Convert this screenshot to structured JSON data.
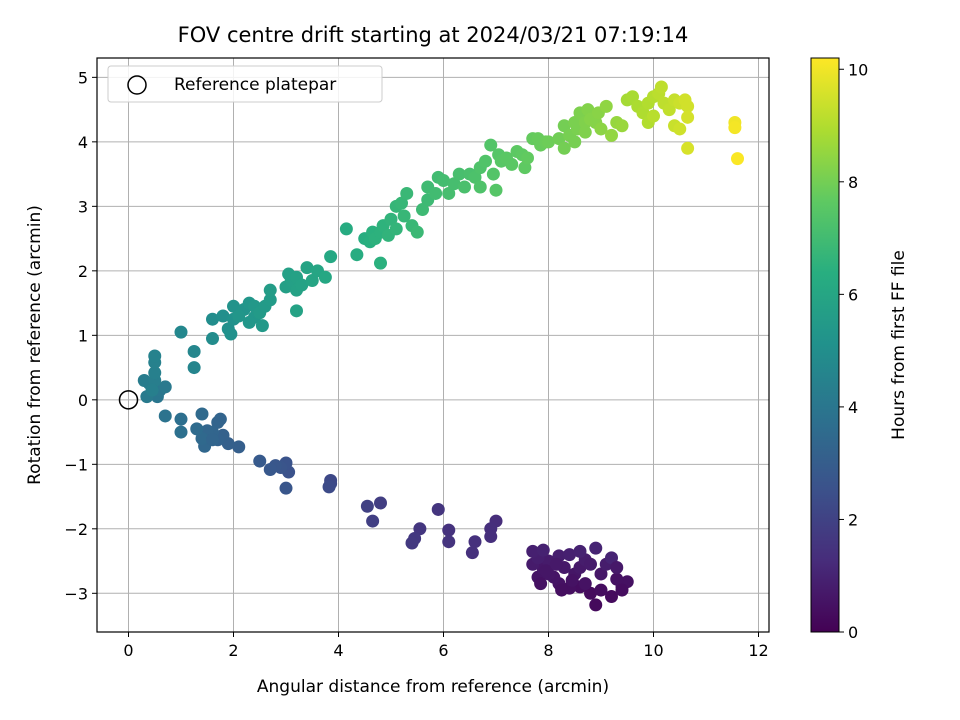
{
  "chart_data": {
    "type": "scatter",
    "title": "FOV centre drift starting at 2024/03/21 07:19:14",
    "xlabel": "Angular distance from reference (arcmin)",
    "ylabel": "Rotation from reference (arcmin)",
    "xlim": [
      -0.6,
      12.2
    ],
    "ylim": [
      -3.6,
      5.3
    ],
    "xticks": [
      "0",
      "2",
      "4",
      "6",
      "8",
      "10",
      "12"
    ],
    "yticks": [
      "−3",
      "−2",
      "−1",
      "0",
      "1",
      "2",
      "3",
      "4",
      "5"
    ],
    "grid": true,
    "legend": {
      "position": "top-left",
      "entries": [
        "Reference platepar"
      ]
    },
    "colorbar": {
      "label": "Hours from first FF file",
      "range": [
        0,
        10.2
      ],
      "ticks": [
        "0",
        "2",
        "4",
        "6",
        "8",
        "10"
      ],
      "colormap": "viridis"
    },
    "reference_point": {
      "x": 0,
      "y": 0,
      "label": "Reference platepar"
    },
    "points": [
      {
        "x": 8.9,
        "y": -3.18,
        "h": 0.25
      },
      {
        "x": 9.2,
        "y": -3.05,
        "h": 0.3
      },
      {
        "x": 8.8,
        "y": -3.0,
        "h": 0.3
      },
      {
        "x": 9.0,
        "y": -2.95,
        "h": 0.35
      },
      {
        "x": 8.6,
        "y": -2.9,
        "h": 0.35
      },
      {
        "x": 8.4,
        "y": -2.92,
        "h": 0.4
      },
      {
        "x": 9.4,
        "y": -2.9,
        "h": 0.4
      },
      {
        "x": 9.5,
        "y": -2.82,
        "h": 0.45
      },
      {
        "x": 9.3,
        "y": -2.78,
        "h": 0.45
      },
      {
        "x": 8.7,
        "y": -2.85,
        "h": 0.5
      },
      {
        "x": 8.2,
        "y": -2.85,
        "h": 0.5
      },
      {
        "x": 8.1,
        "y": -2.75,
        "h": 0.55
      },
      {
        "x": 7.8,
        "y": -2.75,
        "h": 0.55
      },
      {
        "x": 8.0,
        "y": -2.7,
        "h": 0.6
      },
      {
        "x": 8.5,
        "y": -2.7,
        "h": 0.6
      },
      {
        "x": 9.0,
        "y": -2.7,
        "h": 0.65
      },
      {
        "x": 7.9,
        "y": -2.62,
        "h": 0.65
      },
      {
        "x": 8.3,
        "y": -2.6,
        "h": 0.7
      },
      {
        "x": 8.6,
        "y": -2.6,
        "h": 0.7
      },
      {
        "x": 7.7,
        "y": -2.55,
        "h": 0.75
      },
      {
        "x": 8.0,
        "y": -2.5,
        "h": 0.75
      },
      {
        "x": 9.1,
        "y": -2.55,
        "h": 0.8
      },
      {
        "x": 8.7,
        "y": -2.48,
        "h": 0.8
      },
      {
        "x": 7.8,
        "y": -2.45,
        "h": 0.85
      },
      {
        "x": 8.2,
        "y": -2.42,
        "h": 0.85
      },
      {
        "x": 8.4,
        "y": -2.4,
        "h": 0.9
      },
      {
        "x": 7.7,
        "y": -2.35,
        "h": 0.9
      },
      {
        "x": 7.9,
        "y": -2.33,
        "h": 0.95
      },
      {
        "x": 8.6,
        "y": -2.35,
        "h": 0.95
      },
      {
        "x": 8.9,
        "y": -2.3,
        "h": 1.0
      },
      {
        "x": 9.2,
        "y": -2.45,
        "h": 1.0
      },
      {
        "x": 7.95,
        "y": -2.65,
        "h": 0.6
      },
      {
        "x": 8.15,
        "y": -2.55,
        "h": 0.7
      },
      {
        "x": 8.45,
        "y": -2.8,
        "h": 0.5
      },
      {
        "x": 8.8,
        "y": -2.55,
        "h": 0.75
      },
      {
        "x": 9.3,
        "y": -2.6,
        "h": 0.7
      },
      {
        "x": 7.85,
        "y": -2.85,
        "h": 0.45
      },
      {
        "x": 8.25,
        "y": -2.95,
        "h": 0.4
      },
      {
        "x": 9.4,
        "y": -2.95,
        "h": 0.35
      },
      {
        "x": 7.0,
        "y": -1.88,
        "h": 1.3
      },
      {
        "x": 6.9,
        "y": -2.0,
        "h": 1.35
      },
      {
        "x": 6.9,
        "y": -2.12,
        "h": 1.35
      },
      {
        "x": 6.55,
        "y": -2.37,
        "h": 1.4
      },
      {
        "x": 6.6,
        "y": -2.2,
        "h": 1.4
      },
      {
        "x": 6.1,
        "y": -2.02,
        "h": 1.45
      },
      {
        "x": 6.1,
        "y": -2.2,
        "h": 1.5
      },
      {
        "x": 5.9,
        "y": -1.7,
        "h": 1.55
      },
      {
        "x": 5.55,
        "y": -2.0,
        "h": 1.6
      },
      {
        "x": 5.45,
        "y": -2.15,
        "h": 1.65
      },
      {
        "x": 5.4,
        "y": -2.22,
        "h": 1.7
      },
      {
        "x": 4.8,
        "y": -1.6,
        "h": 1.85
      },
      {
        "x": 4.65,
        "y": -1.88,
        "h": 1.9
      },
      {
        "x": 4.55,
        "y": -1.65,
        "h": 1.95
      },
      {
        "x": 3.85,
        "y": -1.25,
        "h": 2.2
      },
      {
        "x": 3.85,
        "y": -1.3,
        "h": 2.25
      },
      {
        "x": 3.82,
        "y": -1.35,
        "h": 2.3
      },
      {
        "x": 3.05,
        "y": -1.12,
        "h": 2.55
      },
      {
        "x": 3.0,
        "y": -0.98,
        "h": 2.6
      },
      {
        "x": 2.9,
        "y": -1.05,
        "h": 2.65
      },
      {
        "x": 3.0,
        "y": -1.37,
        "h": 2.7
      },
      {
        "x": 2.8,
        "y": -1.02,
        "h": 2.75
      },
      {
        "x": 2.7,
        "y": -1.08,
        "h": 2.8
      },
      {
        "x": 2.5,
        "y": -0.95,
        "h": 2.85
      },
      {
        "x": 2.1,
        "y": -0.73,
        "h": 3.05
      },
      {
        "x": 1.9,
        "y": -0.68,
        "h": 3.1
      },
      {
        "x": 1.8,
        "y": -0.55,
        "h": 3.15
      },
      {
        "x": 1.7,
        "y": -0.62,
        "h": 3.2
      },
      {
        "x": 1.7,
        "y": -0.35,
        "h": 3.25
      },
      {
        "x": 1.6,
        "y": -0.5,
        "h": 3.3
      },
      {
        "x": 1.5,
        "y": -0.48,
        "h": 3.35
      },
      {
        "x": 1.45,
        "y": -0.72,
        "h": 3.4
      },
      {
        "x": 1.4,
        "y": -0.6,
        "h": 3.45
      },
      {
        "x": 1.4,
        "y": -0.22,
        "h": 3.5
      },
      {
        "x": 1.3,
        "y": -0.45,
        "h": 3.55
      },
      {
        "x": 1.6,
        "y": -0.62,
        "h": 3.3
      },
      {
        "x": 1.75,
        "y": -0.3,
        "h": 3.25
      },
      {
        "x": 1.0,
        "y": -0.3,
        "h": 3.7
      },
      {
        "x": 1.0,
        "y": -0.5,
        "h": 3.75
      },
      {
        "x": 0.7,
        "y": -0.25,
        "h": 3.85
      },
      {
        "x": 0.55,
        "y": 0.05,
        "h": 4.0
      },
      {
        "x": 0.6,
        "y": 0.15,
        "h": 4.05
      },
      {
        "x": 0.7,
        "y": 0.2,
        "h": 4.1
      },
      {
        "x": 0.35,
        "y": 0.05,
        "h": 4.15
      },
      {
        "x": 0.4,
        "y": 0.25,
        "h": 4.2
      },
      {
        "x": 0.3,
        "y": 0.3,
        "h": 4.25
      },
      {
        "x": 0.5,
        "y": 0.3,
        "h": 4.3
      },
      {
        "x": 0.45,
        "y": 0.15,
        "h": 4.35
      },
      {
        "x": 0.5,
        "y": 0.42,
        "h": 4.4
      },
      {
        "x": 0.5,
        "y": 0.58,
        "h": 4.45
      },
      {
        "x": 0.5,
        "y": 0.68,
        "h": 4.5
      },
      {
        "x": 1.25,
        "y": 0.5,
        "h": 4.6
      },
      {
        "x": 1.25,
        "y": 0.75,
        "h": 4.65
      },
      {
        "x": 1.0,
        "y": 1.05,
        "h": 4.7
      },
      {
        "x": 1.6,
        "y": 0.95,
        "h": 4.9
      },
      {
        "x": 1.6,
        "y": 1.25,
        "h": 4.95
      },
      {
        "x": 1.8,
        "y": 1.3,
        "h": 5.0
      },
      {
        "x": 1.9,
        "y": 1.1,
        "h": 5.05
      },
      {
        "x": 1.95,
        "y": 1.02,
        "h": 5.1
      },
      {
        "x": 2.0,
        "y": 1.25,
        "h": 5.15
      },
      {
        "x": 2.0,
        "y": 1.45,
        "h": 5.2
      },
      {
        "x": 2.2,
        "y": 1.4,
        "h": 5.25
      },
      {
        "x": 2.3,
        "y": 1.5,
        "h": 5.3
      },
      {
        "x": 2.1,
        "y": 1.3,
        "h": 5.3
      },
      {
        "x": 2.4,
        "y": 1.28,
        "h": 5.35
      },
      {
        "x": 2.4,
        "y": 1.45,
        "h": 5.4
      },
      {
        "x": 2.55,
        "y": 1.15,
        "h": 5.45
      },
      {
        "x": 2.5,
        "y": 1.35,
        "h": 5.5
      },
      {
        "x": 2.6,
        "y": 1.45,
        "h": 5.5
      },
      {
        "x": 2.7,
        "y": 1.55,
        "h": 5.55
      },
      {
        "x": 2.7,
        "y": 1.7,
        "h": 5.6
      },
      {
        "x": 2.3,
        "y": 1.2,
        "h": 5.35
      },
      {
        "x": 3.0,
        "y": 1.75,
        "h": 5.7
      },
      {
        "x": 3.1,
        "y": 1.85,
        "h": 5.75
      },
      {
        "x": 3.05,
        "y": 1.95,
        "h": 5.75
      },
      {
        "x": 3.2,
        "y": 1.9,
        "h": 5.8
      },
      {
        "x": 3.2,
        "y": 1.7,
        "h": 5.8
      },
      {
        "x": 3.2,
        "y": 1.38,
        "h": 5.85
      },
      {
        "x": 3.3,
        "y": 1.78,
        "h": 5.85
      },
      {
        "x": 3.4,
        "y": 2.05,
        "h": 5.9
      },
      {
        "x": 3.5,
        "y": 1.85,
        "h": 5.95
      },
      {
        "x": 3.6,
        "y": 2.0,
        "h": 6.0
      },
      {
        "x": 3.75,
        "y": 1.9,
        "h": 6.05
      },
      {
        "x": 3.85,
        "y": 2.22,
        "h": 6.1
      },
      {
        "x": 4.15,
        "y": 2.65,
        "h": 6.25
      },
      {
        "x": 4.35,
        "y": 2.25,
        "h": 6.3
      },
      {
        "x": 4.5,
        "y": 2.5,
        "h": 6.35
      },
      {
        "x": 4.6,
        "y": 2.45,
        "h": 6.4
      },
      {
        "x": 4.65,
        "y": 2.6,
        "h": 6.45
      },
      {
        "x": 4.7,
        "y": 2.5,
        "h": 6.5
      },
      {
        "x": 4.8,
        "y": 2.6,
        "h": 6.5
      },
      {
        "x": 4.85,
        "y": 2.7,
        "h": 6.55
      },
      {
        "x": 4.95,
        "y": 2.55,
        "h": 6.6
      },
      {
        "x": 5.0,
        "y": 2.8,
        "h": 6.6
      },
      {
        "x": 5.1,
        "y": 2.65,
        "h": 6.65
      },
      {
        "x": 4.8,
        "y": 2.12,
        "h": 6.45
      },
      {
        "x": 5.1,
        "y": 3.0,
        "h": 6.7
      },
      {
        "x": 5.2,
        "y": 3.05,
        "h": 6.75
      },
      {
        "x": 5.25,
        "y": 2.85,
        "h": 6.75
      },
      {
        "x": 5.3,
        "y": 3.2,
        "h": 6.8
      },
      {
        "x": 5.4,
        "y": 2.7,
        "h": 6.8
      },
      {
        "x": 5.5,
        "y": 2.6,
        "h": 6.85
      },
      {
        "x": 5.6,
        "y": 2.95,
        "h": 6.9
      },
      {
        "x": 5.7,
        "y": 3.1,
        "h": 6.9
      },
      {
        "x": 5.7,
        "y": 3.3,
        "h": 6.95
      },
      {
        "x": 5.85,
        "y": 3.2,
        "h": 7.0
      },
      {
        "x": 5.9,
        "y": 3.45,
        "h": 7.0
      },
      {
        "x": 6.0,
        "y": 3.4,
        "h": 7.05
      },
      {
        "x": 6.1,
        "y": 3.2,
        "h": 7.1
      },
      {
        "x": 6.2,
        "y": 3.35,
        "h": 7.1
      },
      {
        "x": 6.3,
        "y": 3.5,
        "h": 7.15
      },
      {
        "x": 6.4,
        "y": 3.3,
        "h": 7.2
      },
      {
        "x": 6.5,
        "y": 3.5,
        "h": 7.2
      },
      {
        "x": 6.6,
        "y": 3.45,
        "h": 7.25
      },
      {
        "x": 6.7,
        "y": 3.6,
        "h": 7.3
      },
      {
        "x": 6.7,
        "y": 3.3,
        "h": 7.3
      },
      {
        "x": 6.8,
        "y": 3.7,
        "h": 7.35
      },
      {
        "x": 6.9,
        "y": 3.95,
        "h": 7.4
      },
      {
        "x": 6.95,
        "y": 3.5,
        "h": 7.4
      },
      {
        "x": 7.0,
        "y": 3.25,
        "h": 7.45
      },
      {
        "x": 7.05,
        "y": 3.8,
        "h": 7.45
      },
      {
        "x": 7.1,
        "y": 3.7,
        "h": 7.5
      },
      {
        "x": 7.2,
        "y": 3.75,
        "h": 7.55
      },
      {
        "x": 7.3,
        "y": 3.65,
        "h": 7.55
      },
      {
        "x": 7.4,
        "y": 3.85,
        "h": 7.6
      },
      {
        "x": 7.5,
        "y": 3.8,
        "h": 7.65
      },
      {
        "x": 7.55,
        "y": 3.6,
        "h": 7.65
      },
      {
        "x": 7.6,
        "y": 3.75,
        "h": 7.7
      },
      {
        "x": 7.7,
        "y": 4.05,
        "h": 7.75
      },
      {
        "x": 7.8,
        "y": 4.05,
        "h": 7.8
      },
      {
        "x": 7.85,
        "y": 3.95,
        "h": 7.8
      },
      {
        "x": 7.95,
        "y": 4.0,
        "h": 7.85
      },
      {
        "x": 8.0,
        "y": 4.0,
        "h": 7.9
      },
      {
        "x": 8.2,
        "y": 4.05,
        "h": 7.95
      },
      {
        "x": 8.3,
        "y": 3.9,
        "h": 8.0
      },
      {
        "x": 8.3,
        "y": 4.25,
        "h": 8.0
      },
      {
        "x": 8.4,
        "y": 4.1,
        "h": 8.05
      },
      {
        "x": 8.5,
        "y": 4.0,
        "h": 8.05
      },
      {
        "x": 8.5,
        "y": 4.3,
        "h": 8.1
      },
      {
        "x": 8.55,
        "y": 4.2,
        "h": 8.1
      },
      {
        "x": 8.6,
        "y": 4.45,
        "h": 8.15
      },
      {
        "x": 8.7,
        "y": 4.3,
        "h": 8.2
      },
      {
        "x": 8.7,
        "y": 4.15,
        "h": 8.2
      },
      {
        "x": 8.75,
        "y": 4.5,
        "h": 8.25
      },
      {
        "x": 8.8,
        "y": 4.35,
        "h": 8.3
      },
      {
        "x": 8.9,
        "y": 4.3,
        "h": 8.3
      },
      {
        "x": 8.95,
        "y": 4.45,
        "h": 8.35
      },
      {
        "x": 9.0,
        "y": 4.2,
        "h": 8.4
      },
      {
        "x": 9.1,
        "y": 4.55,
        "h": 8.45
      },
      {
        "x": 9.2,
        "y": 4.1,
        "h": 8.5
      },
      {
        "x": 9.3,
        "y": 4.3,
        "h": 8.55
      },
      {
        "x": 9.4,
        "y": 4.25,
        "h": 8.6
      },
      {
        "x": 9.5,
        "y": 4.65,
        "h": 8.8
      },
      {
        "x": 9.6,
        "y": 4.7,
        "h": 8.85
      },
      {
        "x": 9.7,
        "y": 4.55,
        "h": 8.9
      },
      {
        "x": 9.8,
        "y": 4.45,
        "h": 8.95
      },
      {
        "x": 9.9,
        "y": 4.6,
        "h": 9.0
      },
      {
        "x": 9.9,
        "y": 4.3,
        "h": 9.0
      },
      {
        "x": 10.0,
        "y": 4.7,
        "h": 9.05
      },
      {
        "x": 10.0,
        "y": 4.4,
        "h": 9.1
      },
      {
        "x": 10.1,
        "y": 4.75,
        "h": 9.15
      },
      {
        "x": 10.15,
        "y": 4.85,
        "h": 9.2
      },
      {
        "x": 10.2,
        "y": 4.6,
        "h": 9.2
      },
      {
        "x": 10.3,
        "y": 4.5,
        "h": 9.25
      },
      {
        "x": 10.4,
        "y": 4.65,
        "h": 9.3
      },
      {
        "x": 10.4,
        "y": 4.25,
        "h": 9.35
      },
      {
        "x": 10.5,
        "y": 4.6,
        "h": 9.4
      },
      {
        "x": 10.5,
        "y": 4.2,
        "h": 9.45
      },
      {
        "x": 10.6,
        "y": 4.65,
        "h": 9.5
      },
      {
        "x": 10.65,
        "y": 4.55,
        "h": 9.5
      },
      {
        "x": 10.65,
        "y": 4.38,
        "h": 9.55
      },
      {
        "x": 10.65,
        "y": 3.9,
        "h": 9.6
      },
      {
        "x": 11.55,
        "y": 4.3,
        "h": 10.0
      },
      {
        "x": 11.55,
        "y": 4.22,
        "h": 10.05
      },
      {
        "x": 11.6,
        "y": 3.74,
        "h": 10.15
      }
    ]
  }
}
